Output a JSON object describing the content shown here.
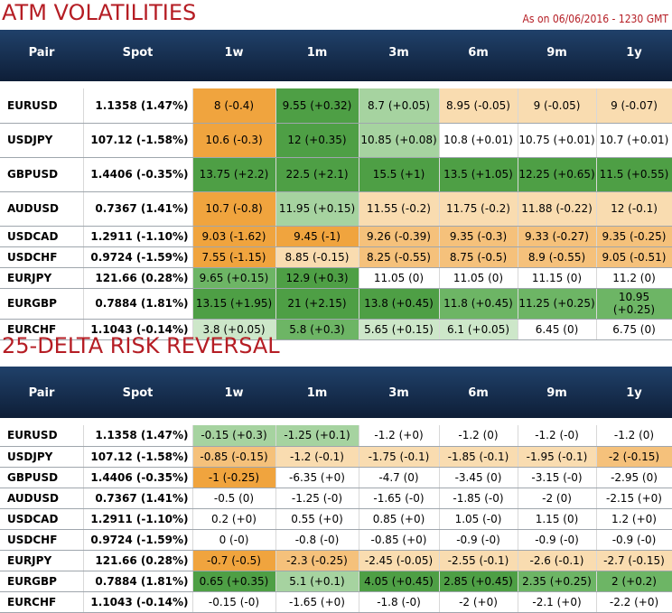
{
  "atm": {
    "title": "ATM VOLATILITIES",
    "as_on": "As on 06/06/2016 - 1230 GMT",
    "headers": [
      "Pair",
      "Spot",
      "1w",
      "1m",
      "3m",
      "6m",
      "9m",
      "1y"
    ],
    "rows": [
      {
        "pair": "EURUSD",
        "spot": "1.1358 (1.47%)",
        "cells": [
          "8 (-0.4)",
          "9.55 (+0.32)",
          "8.7 (+0.05)",
          "8.95 (-0.05)",
          "9 (-0.05)",
          "9 (-0.07)"
        ]
      },
      {
        "pair": "USDJPY",
        "spot": "107.12 (-1.58%)",
        "cells": [
          "10.6 (-0.3)",
          "12 (+0.35)",
          "10.85 (+0.08)",
          "10.8 (+0.01)",
          "10.75 (+0.01)",
          "10.7 (+0.01)"
        ]
      },
      {
        "pair": "GBPUSD",
        "spot": "1.4406 (-0.35%)",
        "cells": [
          "13.75 (+2.2)",
          "22.5 (+2.1)",
          "15.5 (+1)",
          "13.5 (+1.05)",
          "12.25 (+0.65)",
          "11.5 (+0.55)"
        ]
      },
      {
        "pair": "AUDUSD",
        "spot": "0.7367 (1.41%)",
        "cells": [
          "10.7 (-0.8)",
          "11.95 (+0.15)",
          "11.55 (-0.2)",
          "11.75 (-0.2)",
          "11.88 (-0.22)",
          "12 (-0.1)"
        ]
      },
      {
        "pair": "USDCAD",
        "spot": "1.2911 (-1.10%)",
        "cells": [
          "9.03 (-1.62)",
          "9.45 (-1)",
          "9.26 (-0.39)",
          "9.35 (-0.3)",
          "9.33 (-0.27)",
          "9.35 (-0.25)"
        ]
      },
      {
        "pair": "USDCHF",
        "spot": "0.9724 (-1.59%)",
        "cells": [
          "7.55 (-1.15)",
          "8.85 (-0.15)",
          "8.25 (-0.55)",
          "8.75 (-0.5)",
          "8.9 (-0.55)",
          "9.05 (-0.51)"
        ]
      },
      {
        "pair": "EURJPY",
        "spot": "121.66 (0.28%)",
        "cells": [
          "9.65 (+0.15)",
          "12.9 (+0.3)",
          "11.05 (0)",
          "11.05 (0)",
          "11.15 (0)",
          "11.2 (0)"
        ]
      },
      {
        "pair": "EURGBP",
        "spot": "0.7884 (1.81%)",
        "cells": [
          "13.15 (+1.95)",
          "21 (+2.15)",
          "13.8 (+0.45)",
          "11.8 (+0.45)",
          "11.25 (+0.25)",
          "10.95 (+0.25)"
        ]
      },
      {
        "pair": "EURCHF",
        "spot": "1.1043 (-0.14%)",
        "cells": [
          "3.8 (+0.05)",
          "5.8 (+0.3)",
          "5.65 (+0.15)",
          "6.1 (+0.05)",
          "6.45 (0)",
          "6.75 (0)"
        ]
      }
    ]
  },
  "rr": {
    "title": "25-DELTA RISK REVERSAL",
    "headers": [
      "Pair",
      "Spot",
      "1w",
      "1m",
      "3m",
      "6m",
      "9m",
      "1y"
    ],
    "rows": [
      {
        "pair": "EURUSD",
        "spot": "1.1358 (1.47%)",
        "cells": [
          "-0.15 (+0.3)",
          "-1.25 (+0.1)",
          "-1.2 (+0)",
          "-1.2 (0)",
          "-1.2 (-0)",
          "-1.2 (0)"
        ]
      },
      {
        "pair": "USDJPY",
        "spot": "107.12 (-1.58%)",
        "cells": [
          "-0.85 (-0.15)",
          "-1.2 (-0.1)",
          "-1.75 (-0.1)",
          "-1.85 (-0.1)",
          "-1.95 (-0.1)",
          "-2 (-0.15)"
        ]
      },
      {
        "pair": "GBPUSD",
        "spot": "1.4406 (-0.35%)",
        "cells": [
          "-1 (-0.25)",
          "-6.35 (+0)",
          "-4.7 (0)",
          "-3.45 (0)",
          "-3.15 (-0)",
          "-2.95 (0)"
        ]
      },
      {
        "pair": "AUDUSD",
        "spot": "0.7367 (1.41%)",
        "cells": [
          "-0.5 (0)",
          "-1.25 (-0)",
          "-1.65 (-0)",
          "-1.85 (-0)",
          "-2 (0)",
          "-2.15 (+0)"
        ]
      },
      {
        "pair": "USDCAD",
        "spot": "1.2911 (-1.10%)",
        "cells": [
          "0.2 (+0)",
          "0.55 (+0)",
          "0.85 (+0)",
          "1.05 (-0)",
          "1.15 (0)",
          "1.2 (+0)"
        ]
      },
      {
        "pair": "USDCHF",
        "spot": "0.9724 (-1.59%)",
        "cells": [
          "0 (-0)",
          "-0.8 (-0)",
          "-0.85 (+0)",
          "-0.9 (-0)",
          "-0.9 (-0)",
          "-0.9 (-0)"
        ]
      },
      {
        "pair": "EURJPY",
        "spot": "121.66 (0.28%)",
        "cells": [
          "-0.7 (-0.5)",
          "-2.3 (-0.25)",
          "-2.45 (-0.05)",
          "-2.55 (-0.1)",
          "-2.6 (-0.1)",
          "-2.7 (-0.15)"
        ]
      },
      {
        "pair": "EURGBP",
        "spot": "0.7884 (1.81%)",
        "cells": [
          "0.65 (+0.35)",
          "5.1 (+0.1)",
          "4.05 (+0.45)",
          "2.85 (+0.45)",
          "2.35 (+0.25)",
          "2 (+0.2)"
        ]
      },
      {
        "pair": "EURCHF",
        "spot": "1.1043 (-0.14%)",
        "cells": [
          "-0.15 (-0)",
          "-1.65 (+0)",
          "-1.8 (-0)",
          "-2 (+0)",
          "-2.1 (+0)",
          "-2.2 (+0)"
        ]
      }
    ]
  }
}
